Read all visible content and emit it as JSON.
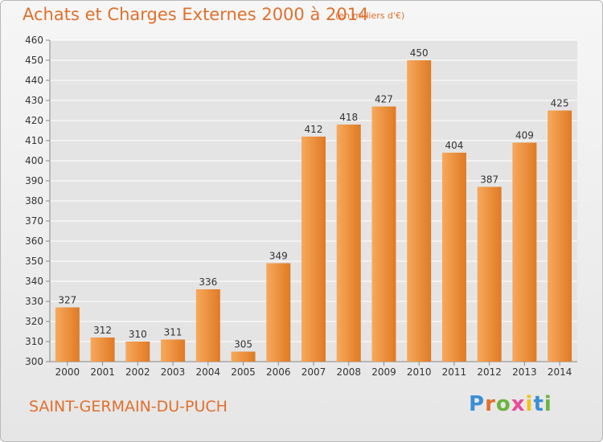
{
  "header": {
    "title": "Achats et Charges Externes 2000 à 2014",
    "unit": "(en milliers d'€)"
  },
  "footer": {
    "commune": "SAINT-GERMAIN-DU-PUCH",
    "logo": "Proxiti"
  },
  "colors": {
    "bar_light": "#f7a95c",
    "bar_dark": "#e07a24",
    "accent": "#e0702c",
    "grid": "#ffffff"
  },
  "chart_data": {
    "type": "bar",
    "title": "Achats et Charges Externes 2000 à 2014",
    "categories": [
      "2000",
      "2001",
      "2002",
      "2003",
      "2004",
      "2005",
      "2006",
      "2007",
      "2008",
      "2009",
      "2010",
      "2011",
      "2012",
      "2013",
      "2014"
    ],
    "values": [
      327,
      312,
      310,
      311,
      336,
      305,
      349,
      412,
      418,
      427,
      450,
      404,
      387,
      409,
      425
    ],
    "ylim": [
      300,
      460
    ],
    "yticks": [
      300,
      310,
      320,
      330,
      340,
      350,
      360,
      370,
      380,
      390,
      400,
      410,
      420,
      430,
      440,
      450,
      460
    ],
    "grid": true,
    "xlabel": "",
    "ylabel": ""
  }
}
